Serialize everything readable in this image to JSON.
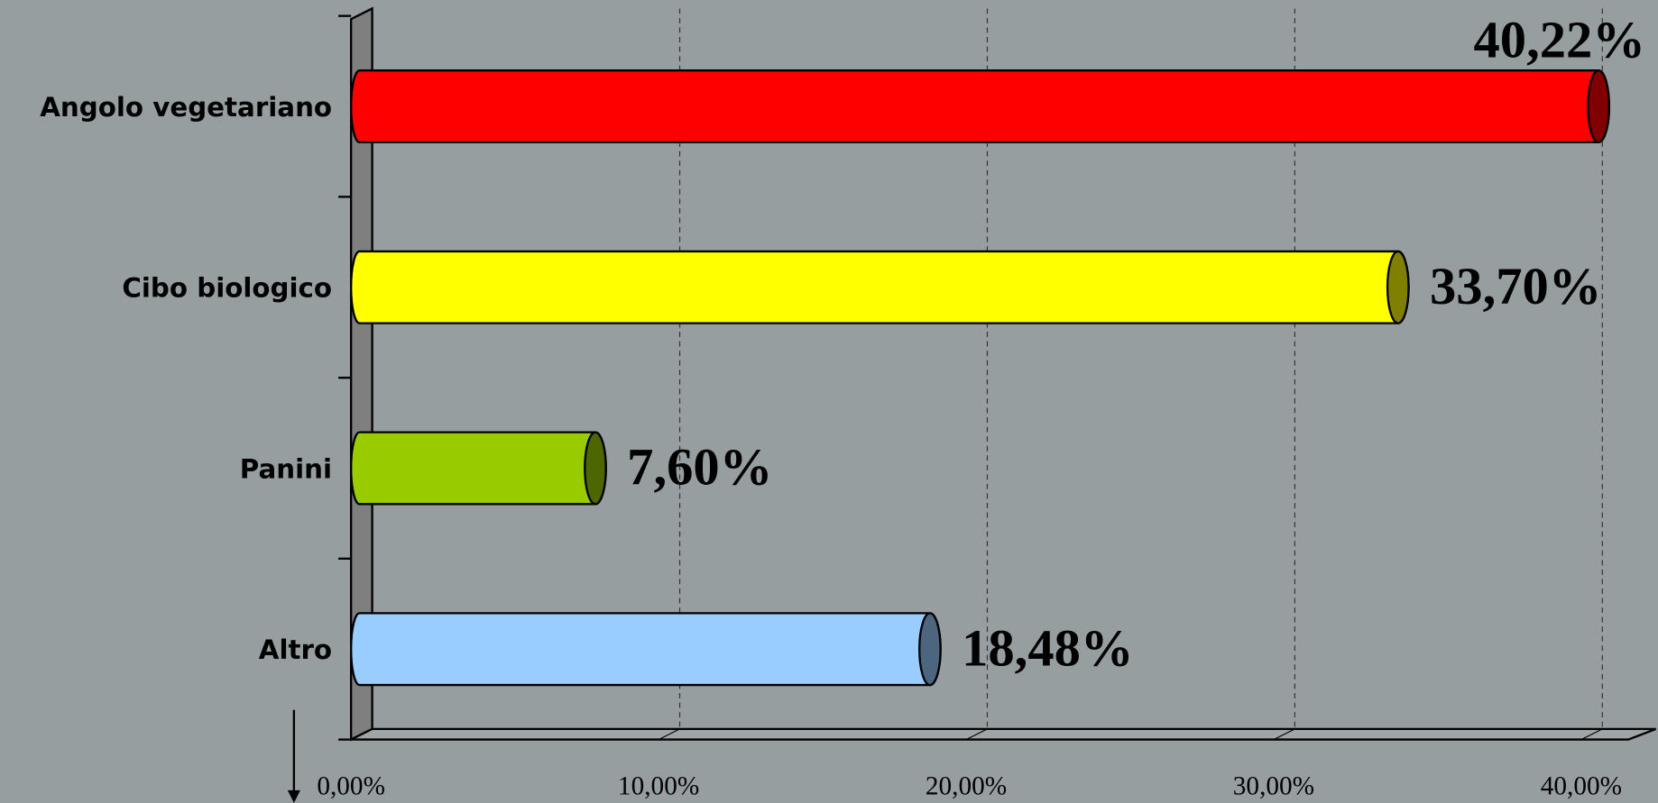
{
  "chart_data": {
    "type": "bar",
    "orientation": "horizontal",
    "categories": [
      "Angolo vegetariano",
      "Cibo biologico",
      "Panini",
      "Altro"
    ],
    "values": [
      40.22,
      33.7,
      7.6,
      18.48
    ],
    "value_labels": [
      "40,22%",
      "33,70%",
      "7,60%",
      "18,48%"
    ],
    "colors": [
      "#ff0000",
      "#ffff00",
      "#99cc00",
      "#99ccff"
    ],
    "xlim": [
      0,
      41.5
    ],
    "xticks": [
      {
        "value": 0,
        "label": "0,00%"
      },
      {
        "value": 10,
        "label": "10,00%"
      },
      {
        "value": 20,
        "label": "20,00%"
      },
      {
        "value": 30,
        "label": "30,00%"
      },
      {
        "value": 40,
        "label": "40,00%"
      }
    ],
    "grid": true
  }
}
